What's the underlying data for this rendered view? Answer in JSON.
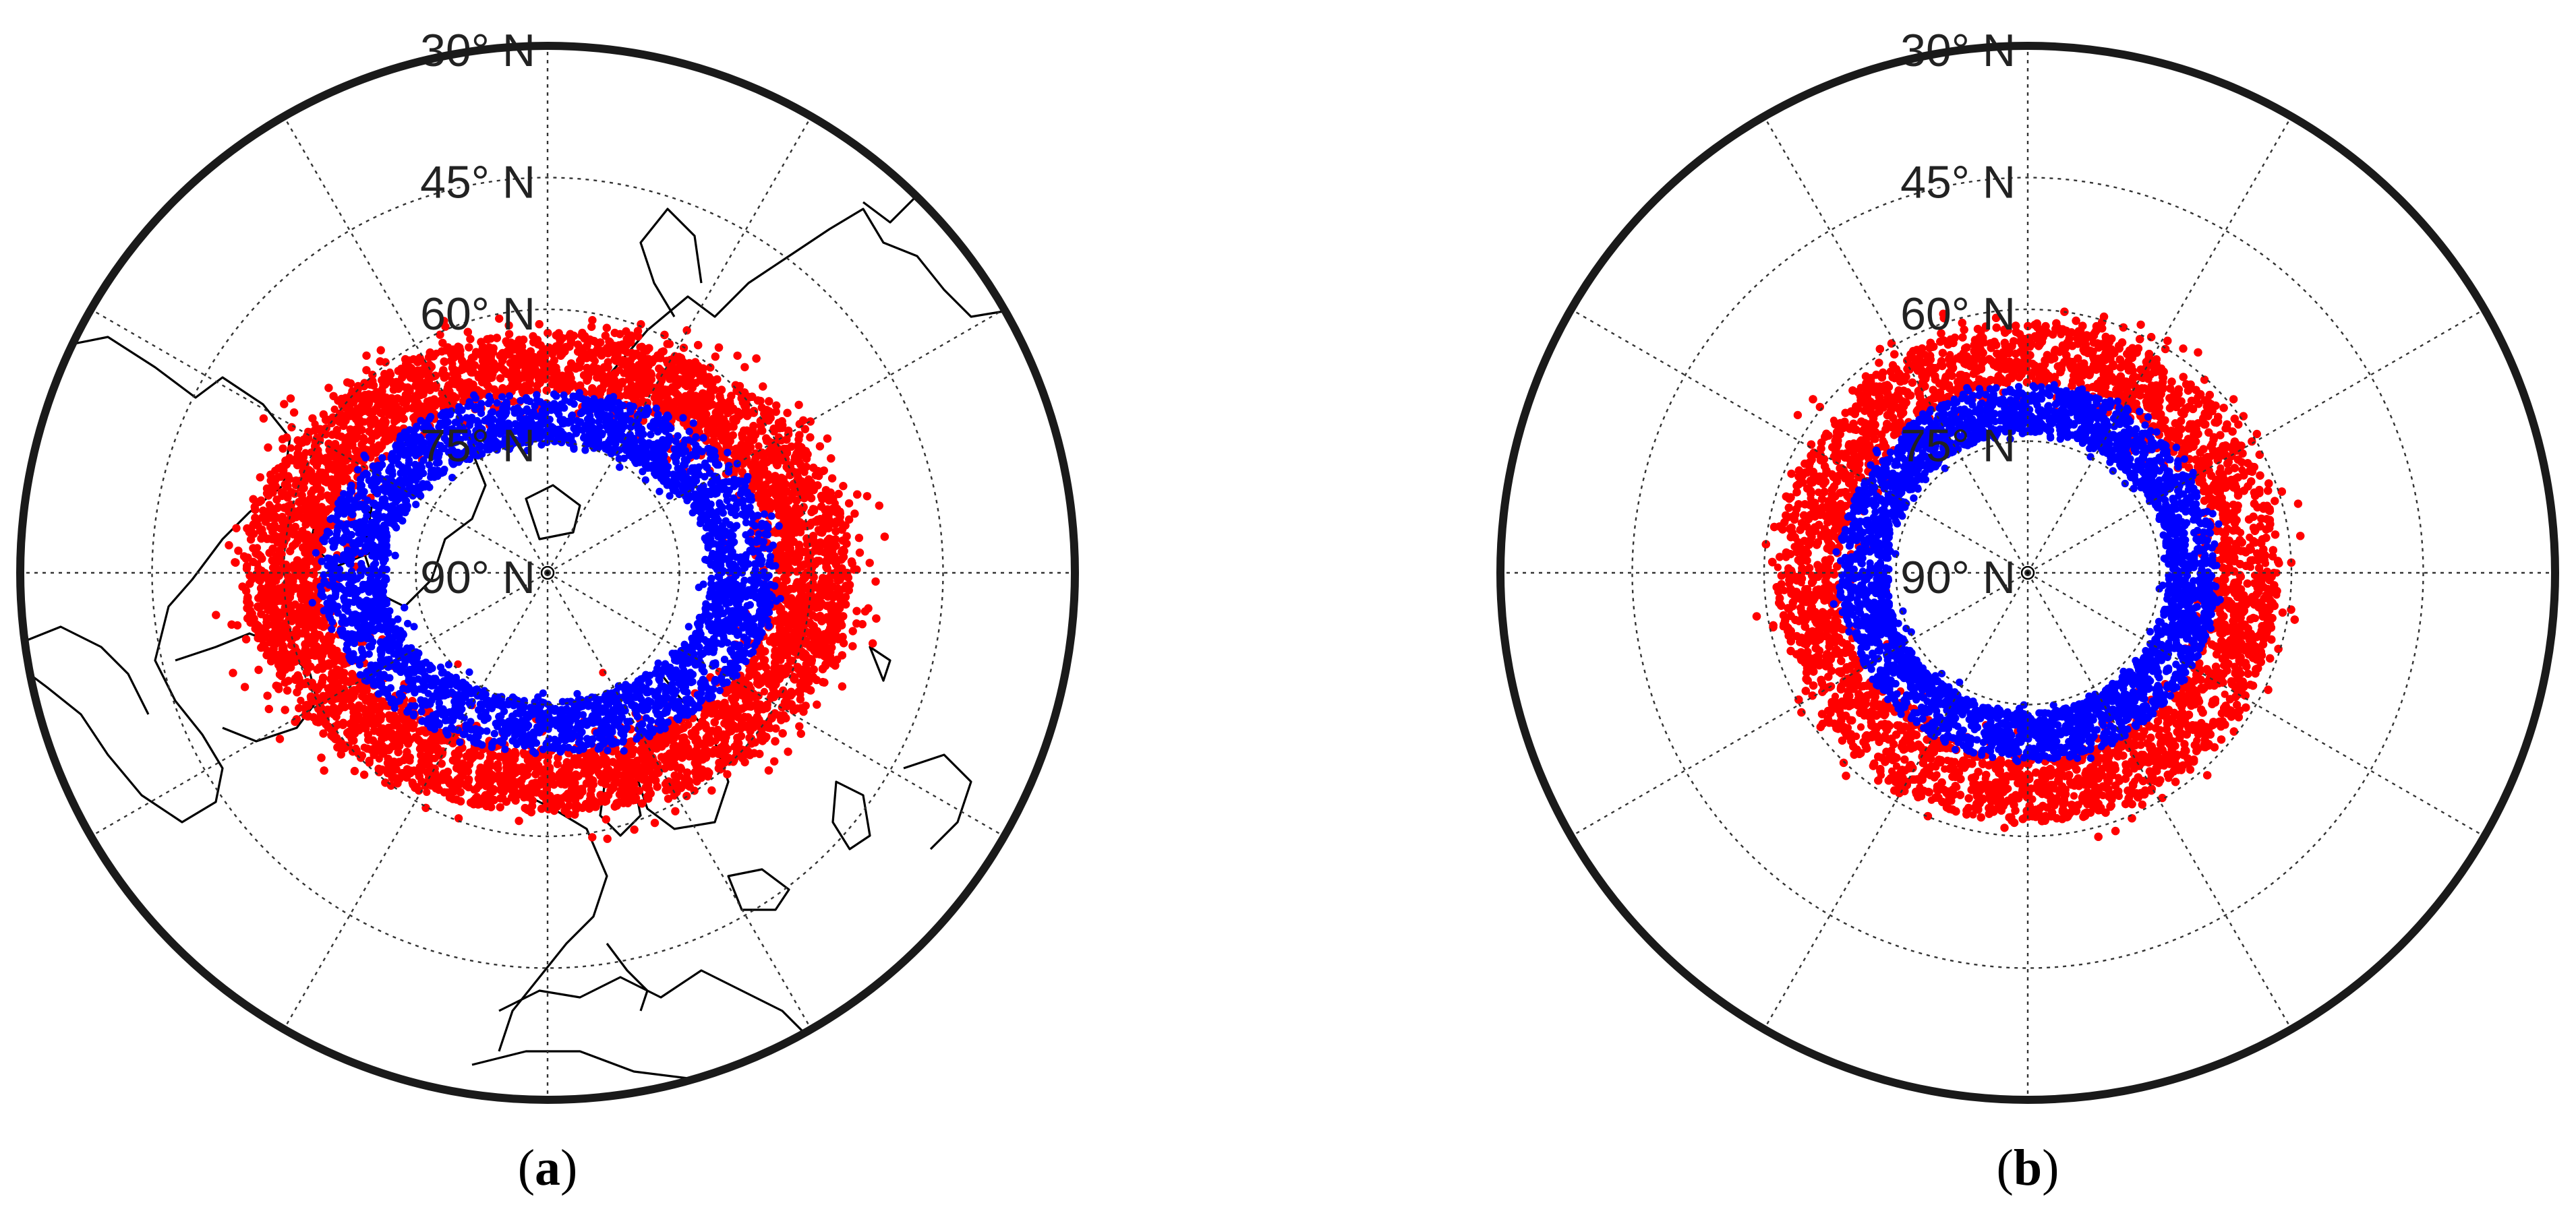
{
  "figure": {
    "panels": [
      {
        "id": "a",
        "label": "a",
        "show_coastlines": true,
        "projection": "north-polar-stereographic",
        "lat_labels": [
          "30° N",
          "45° N",
          "60° N",
          "75° N",
          "90° N"
        ],
        "lat_circles": [
          30,
          45,
          60,
          75,
          90
        ],
        "meridian_spacing_deg": 30,
        "rings": [
          {
            "color_role": "outer",
            "inner_lat": 65.5,
            "outer_lat": 57.5,
            "scatter_lat": 4.5
          },
          {
            "color_role": "inner",
            "inner_lat": 72.5,
            "outer_lat": 65.5,
            "scatter_lat": 1.5
          }
        ]
      },
      {
        "id": "b",
        "label": "b",
        "show_coastlines": false,
        "projection": "north-polar-stereographic",
        "lat_labels": [
          "30° N",
          "45° N",
          "60° N",
          "75° N",
          "90° N"
        ],
        "lat_circles": [
          30,
          45,
          60,
          75,
          90
        ],
        "meridian_spacing_deg": 30,
        "rings": [
          {
            "color_role": "outer",
            "inner_lat": 68.5,
            "outer_lat": 61.5,
            "scatter_lat": 3.5
          },
          {
            "color_role": "inner",
            "inner_lat": 74.0,
            "outer_lat": 68.5,
            "scatter_lat": 1.2
          }
        ]
      }
    ],
    "colors": {
      "outer": "#ff0000",
      "inner": "#0000ff",
      "frame": "#1a1a1a",
      "grid": "#333333",
      "coast": "#000000"
    }
  }
}
